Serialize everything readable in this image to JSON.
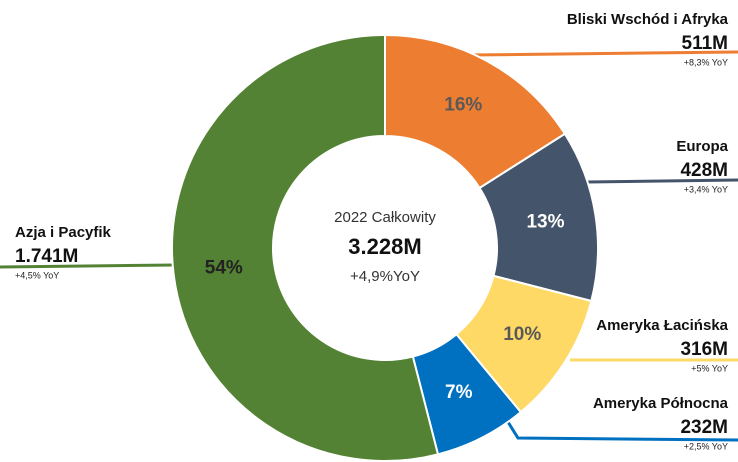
{
  "chart_data": {
    "type": "donut",
    "categories": [
      "Bliski Wschód i Afryka",
      "Europa",
      "Ameryka Łacińska",
      "Ameryka Północna",
      "Azja i Pacyfik"
    ],
    "values": [
      16,
      13,
      10,
      7,
      54
    ],
    "value_labels": [
      "16%",
      "13%",
      "10%",
      "7%",
      "54%"
    ],
    "amounts": [
      "511M",
      "428M",
      "316M",
      "232M",
      "1.741M"
    ],
    "yoy": [
      "+8,3% YoY",
      "+3,4% YoY",
      "+5% YoY",
      "+2,5% YoY",
      "+4,5% YoY"
    ],
    "colors": [
      "#ED7D31",
      "#44546A",
      "#FFD966",
      "#0070C0",
      "#548235"
    ],
    "center_title": "2022 Całkowity",
    "center_value": "3.228M",
    "center_change": "+4,9%YoY"
  }
}
